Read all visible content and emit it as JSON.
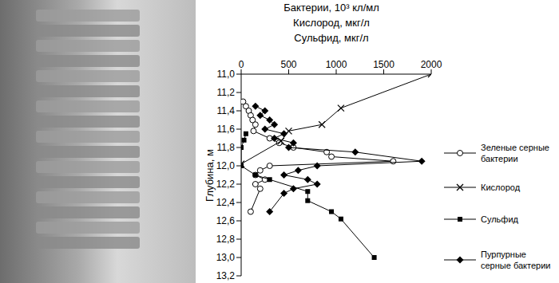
{
  "chart_data": {
    "type": "scatter",
    "xlabel": [
      "Бактерии, 10³ кл/мл",
      "Кислород, мкг/л",
      "Сульфид, мкг/л"
    ],
    "ylabel": "Глубина, м",
    "xlim": [
      0,
      2000
    ],
    "xticks": [
      0,
      500,
      1000,
      1500,
      2000
    ],
    "ylim": [
      11.0,
      13.2
    ],
    "yticks": [
      {
        "value": 11.0,
        "label": "11,0"
      },
      {
        "value": 11.2,
        "label": "11,2"
      },
      {
        "value": 11.4,
        "label": "11,4"
      },
      {
        "value": 11.6,
        "label": "11,6"
      },
      {
        "value": 11.8,
        "label": "11,8"
      },
      {
        "value": 12.0,
        "label": "12,0"
      },
      {
        "value": 12.2,
        "label": "12,2"
      },
      {
        "value": 12.4,
        "label": "12,4"
      },
      {
        "value": 12.6,
        "label": "12,6"
      },
      {
        "value": 12.8,
        "label": "12,8"
      },
      {
        "value": 13.0,
        "label": "13,0"
      },
      {
        "value": 13.2,
        "label": "13,2"
      }
    ],
    "grid": false,
    "legend": "right",
    "series": [
      {
        "name": "Зеленые серные бактерии",
        "color": "#000000",
        "marker": "circle_open",
        "line_style": "solid",
        "x": [
          20,
          50,
          80,
          100,
          120,
          150,
          130,
          300,
          400,
          550,
          900,
          950,
          1600,
          300,
          200,
          150,
          250,
          150,
          200,
          100
        ],
        "y": [
          11.3,
          11.35,
          11.4,
          11.45,
          11.5,
          11.55,
          11.62,
          11.7,
          11.75,
          11.8,
          11.85,
          11.9,
          11.95,
          12.0,
          12.05,
          12.1,
          12.15,
          12.2,
          12.25,
          12.5
        ]
      },
      {
        "name": "Кислород",
        "color": "#000000",
        "marker": "x",
        "line_style": "solid",
        "x": [
          2000,
          1050,
          850,
          500,
          420,
          0
        ],
        "y": [
          11.0,
          11.37,
          11.55,
          11.62,
          11.73,
          11.98
        ]
      },
      {
        "name": "Сульфид",
        "color": "#000000",
        "marker": "square",
        "line_style": "solid",
        "x": [
          50,
          30,
          0,
          0,
          150,
          300,
          700,
          700,
          950,
          1050,
          1400
        ],
        "y": [
          11.65,
          11.72,
          11.8,
          12.0,
          12.1,
          12.15,
          12.28,
          12.38,
          12.5,
          12.58,
          13.0
        ]
      },
      {
        "name": "Пурпурные серные бактерии",
        "color": "#000000",
        "marker": "diamond",
        "line_style": "solid",
        "x": [
          150,
          250,
          200,
          300,
          350,
          250,
          450,
          350,
          550,
          500,
          1200,
          1900,
          800,
          600,
          450,
          700,
          800,
          550,
          450,
          300
        ],
        "y": [
          11.35,
          11.4,
          11.45,
          11.5,
          11.55,
          11.6,
          11.65,
          11.7,
          11.75,
          11.8,
          11.85,
          11.95,
          12.0,
          12.05,
          12.1,
          12.15,
          12.2,
          12.25,
          12.3,
          12.5
        ]
      }
    ]
  }
}
